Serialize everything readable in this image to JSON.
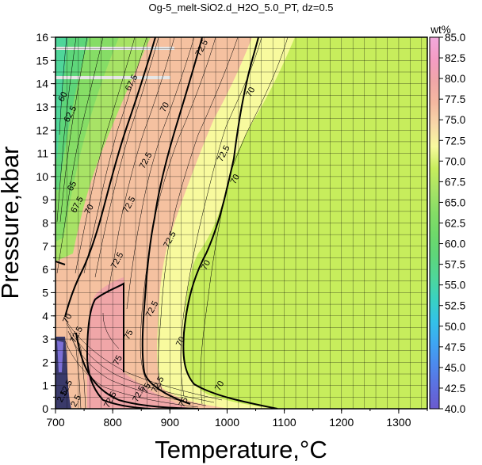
{
  "chart_data": {
    "type": "heatmap",
    "title": "Og-5_melt-SiO2.d_H2O_5.0_PT, dz=0.5",
    "xlabel": "Temperature,°C",
    "ylabel": "Pressure,kbar",
    "xlim": [
      700,
      1350
    ],
    "ylim": [
      0,
      16
    ],
    "xticks": [
      700,
      800,
      900,
      1000,
      1100,
      1200,
      1300
    ],
    "yticks": [
      0,
      1,
      2,
      3,
      4,
      5,
      6,
      7,
      8,
      9,
      10,
      11,
      12,
      13,
      14,
      15,
      16
    ],
    "grid": true,
    "colorbar": {
      "unit": "wt%",
      "min": 40.0,
      "max": 85.0,
      "ticks": [
        "40.0",
        "42.5",
        "45.0",
        "47.5",
        "50.0",
        "52.5",
        "55.0",
        "57.5",
        "60.0",
        "62.5",
        "65.0",
        "67.5",
        "70.0",
        "72.5",
        "75.0",
        "77.5",
        "80.0",
        "82.5",
        "85.0"
      ],
      "colors": [
        "#6a5acd",
        "#5d6fe0",
        "#4d89ee",
        "#3ea6f3",
        "#33c2e8",
        "#39d2c2",
        "#4fd69a",
        "#5ed67a",
        "#6fd96a",
        "#86dd66",
        "#a8e366",
        "#c7ed5c",
        "#f8fa9e",
        "#f8d8a8",
        "#f5b8a0",
        "#f0a6a8",
        "#f49cc4",
        "#f2a9dc"
      ]
    },
    "regions": [
      {
        "name": "field-67.5",
        "value": 68.5
      },
      {
        "name": "field-70",
        "value": 71.0
      },
      {
        "name": "field-72.5",
        "value": 73.5
      },
      {
        "name": "field-75",
        "value": 76.0
      }
    ],
    "contour_labels": [
      {
        "text": "72.5",
        "x": 955,
        "y": 15.55
      },
      {
        "text": "70",
        "x": 1040,
        "y": 13.65
      },
      {
        "text": "70",
        "x": 890,
        "y": 13.0
      },
      {
        "text": "67.5",
        "x": 832,
        "y": 14.05
      },
      {
        "text": "62.5",
        "x": 725,
        "y": 12.7
      },
      {
        "text": "60",
        "x": 712,
        "y": 13.45
      },
      {
        "text": "72.5",
        "x": 857,
        "y": 10.7
      },
      {
        "text": "72.5",
        "x": 993,
        "y": 11.0
      },
      {
        "text": "70",
        "x": 1013,
        "y": 9.9
      },
      {
        "text": "72.5",
        "x": 828,
        "y": 8.8
      },
      {
        "text": "67.5",
        "x": 737,
        "y": 8.8
      },
      {
        "text": "65",
        "x": 728,
        "y": 9.6
      },
      {
        "text": "70",
        "x": 758,
        "y": 8.6
      },
      {
        "text": "72.5",
        "x": 807,
        "y": 6.4
      },
      {
        "text": "72.5",
        "x": 899,
        "y": 7.3
      },
      {
        "text": "70",
        "x": 962,
        "y": 6.2
      },
      {
        "text": "72.5",
        "x": 868,
        "y": 4.3
      },
      {
        "text": "75",
        "x": 827,
        "y": 3.2
      },
      {
        "text": "70",
        "x": 918,
        "y": 2.9
      },
      {
        "text": "72.5",
        "x": 736,
        "y": 3.2
      },
      {
        "text": "70",
        "x": 720,
        "y": 3.9
      },
      {
        "text": "75",
        "x": 808,
        "y": 2.1
      },
      {
        "text": "72.5",
        "x": 845,
        "y": 0.65
      },
      {
        "text": "75",
        "x": 858,
        "y": 0.9
      },
      {
        "text": "72.5",
        "x": 878,
        "y": 1.05
      },
      {
        "text": "70",
        "x": 986,
        "y": 1.0
      },
      {
        "text": "75",
        "x": 923,
        "y": 0.3
      },
      {
        "text": "72.5",
        "x": 795,
        "y": 0.4
      },
      {
        "text": "12.5",
        "x": 718,
        "y": 0.9
      },
      {
        "text": "2.5",
        "x": 711,
        "y": 0.55
      },
      {
        "text": "2.5",
        "x": 735,
        "y": 0.35
      }
    ]
  }
}
